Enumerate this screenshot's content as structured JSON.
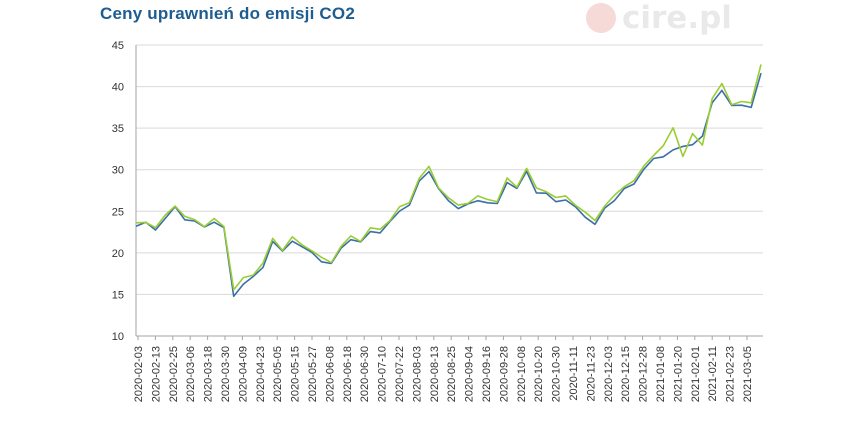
{
  "chart_data": {
    "type": "line",
    "title": "Ceny uprawnień do emisji CO2",
    "xlabel": "",
    "ylabel": "",
    "ylim": [
      10,
      45
    ],
    "yticks": [
      10,
      15,
      20,
      25,
      30,
      35,
      40,
      45
    ],
    "grid": true,
    "legend": "none",
    "x_ticks": [
      "2020-02-03",
      "2020-02-13",
      "2020-02-25",
      "2020-03-06",
      "2020-03-18",
      "2020-03-30",
      "2020-04-09",
      "2020-04-23",
      "2020-05-05",
      "2020-05-15",
      "2020-05-27",
      "2020-06-08",
      "2020-06-18",
      "2020-06-30",
      "2020-07-10",
      "2020-07-22",
      "2020-08-03",
      "2020-08-13",
      "2020-08-25",
      "2020-09-04",
      "2020-09-16",
      "2020-09-28",
      "2020-10-08",
      "2020-10-20",
      "2020-10-30",
      "2020-11-11",
      "2020-11-23",
      "2020-12-03",
      "2020-12-15",
      "2020-12-28",
      "2021-01-08",
      "2021-01-20",
      "2021-02-01",
      "2021-02-11",
      "2021-02-23",
      "2021-03-05"
    ],
    "series": [
      {
        "color": "#3a6fa8",
        "values": [
          23.2,
          23.5,
          23.0,
          24.0,
          25.5,
          24.2,
          23.6,
          23.2,
          23.8,
          22.8,
          15.0,
          16.2,
          17.0,
          18.5,
          21.2,
          20.2,
          21.6,
          20.5,
          20.2,
          19.0,
          18.5,
          20.8,
          21.5,
          21.2,
          22.8,
          22.2,
          23.8,
          25.2,
          25.5,
          28.8,
          29.8,
          27.5,
          26.5,
          25.2,
          25.8,
          26.5,
          25.8,
          26.0,
          28.6,
          27.5,
          30.0,
          27.2,
          27.0,
          26.4,
          26.2,
          25.5,
          24.5,
          23.2,
          25.5,
          26.4,
          27.5,
          28.5,
          30.0,
          31.2,
          31.8,
          32.2,
          32.8,
          33.2,
          33.8,
          38.2,
          39.6,
          37.5,
          38.0,
          37.4,
          41.5
        ]
      },
      {
        "color": "#9acd32",
        "values": [
          23.4,
          23.7,
          23.2,
          24.3,
          25.8,
          24.4,
          23.8,
          23.4,
          24.0,
          23.1,
          15.8,
          16.8,
          17.4,
          18.9,
          21.5,
          20.5,
          21.9,
          20.8,
          20.5,
          19.3,
          18.8,
          21.0,
          21.8,
          21.5,
          23.1,
          22.6,
          24.1,
          25.5,
          25.9,
          29.2,
          30.2,
          27.8,
          26.8,
          25.5,
          26.1,
          26.9,
          26.2,
          26.4,
          28.9,
          27.8,
          30.4,
          27.6,
          27.4,
          26.8,
          26.6,
          25.9,
          24.9,
          23.7,
          25.9,
          26.8,
          27.9,
          28.9,
          30.2,
          31.8,
          33.0,
          34.8,
          31.8,
          34.3,
          32.8,
          38.8,
          40.2,
          37.8,
          38.4,
          37.8,
          42.8
        ]
      }
    ]
  },
  "watermark": {
    "text": "cire.pl"
  }
}
